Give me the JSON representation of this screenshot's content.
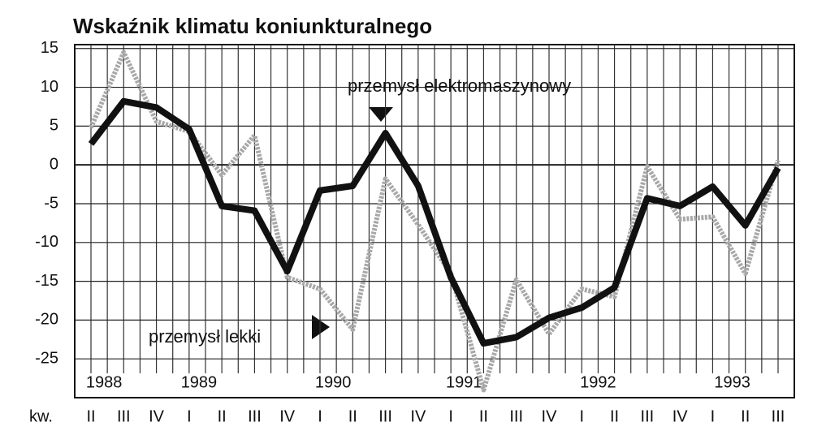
{
  "chart_data": {
    "type": "line",
    "title": "Wskaźnik klimatu koniunkturalnego",
    "x_label": "kw.",
    "categories": [
      "II",
      "III",
      "IV",
      "I",
      "II",
      "III",
      "IV",
      "I",
      "II",
      "III",
      "IV",
      "I",
      "II",
      "III",
      "IV",
      "I",
      "II",
      "III",
      "IV",
      "I",
      "II",
      "III"
    ],
    "years": [
      "1988",
      "1989",
      "1990",
      "1991",
      "1992",
      "1993"
    ],
    "series": [
      {
        "name": "przemysł elektromaszynowy",
        "color": "#111111",
        "values": [
          2.7,
          8.2,
          7.4,
          4.6,
          -5.3,
          -5.9,
          -13.7,
          -3.3,
          -2.7,
          4.1,
          -2.7,
          -14.5,
          -23,
          -22.2,
          -19.7,
          -18.4,
          -15.8,
          -4.3,
          -5.3,
          -2.8,
          -7.8,
          -0.4
        ]
      },
      {
        "name": "przemysł lekki",
        "color": "#a8a8a8",
        "values": [
          4.8,
          14.5,
          5.6,
          4.3,
          -1.3,
          3.8,
          -14.5,
          -16,
          -21.2,
          -1.8,
          -7.7,
          -14,
          -29,
          -14.8,
          -21.8,
          -16,
          -17,
          -0.2,
          -7,
          -6.7,
          -14,
          0.6
        ]
      }
    ],
    "ylim": [
      -30,
      15.5
    ],
    "yticks": [
      15,
      10,
      5,
      0,
      -5,
      -10,
      -15,
      -20,
      -25
    ],
    "grid": true
  }
}
